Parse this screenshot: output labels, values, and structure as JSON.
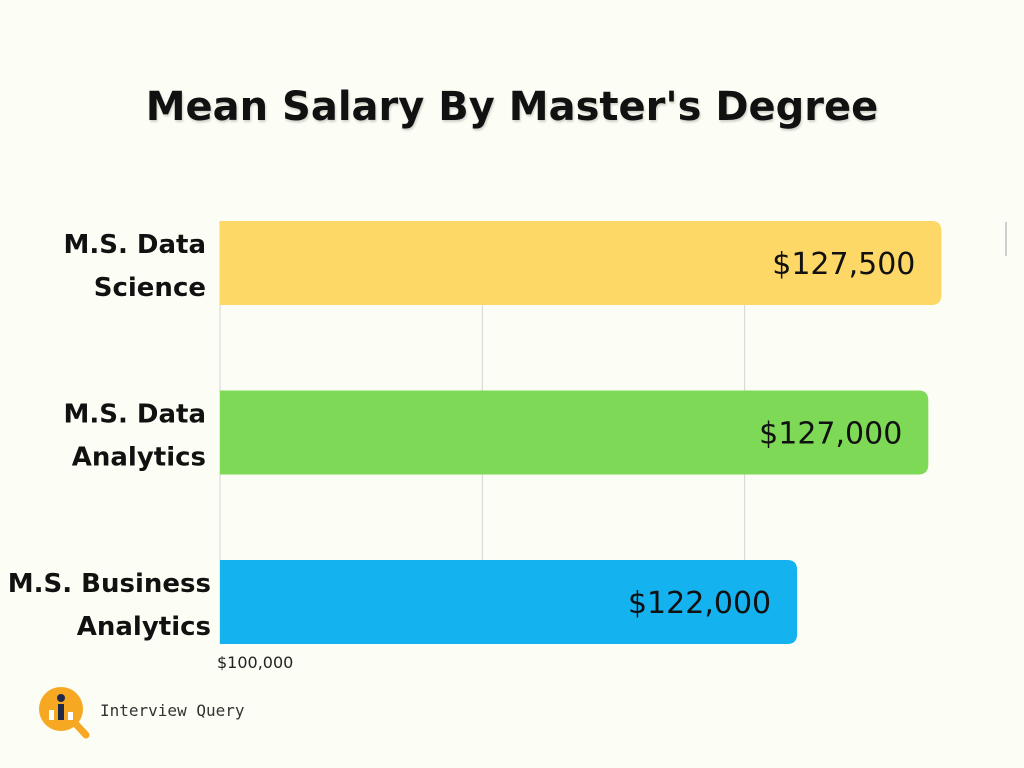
{
  "chart_data": {
    "type": "bar",
    "orientation": "horizontal",
    "title": "Mean Salary By Master's Degree",
    "categories": [
      [
        "M.S. Data",
        "Science"
      ],
      [
        "M.S. Data",
        "Analytics"
      ],
      [
        "M.S. Business",
        "Analytics"
      ]
    ],
    "values": [
      127500,
      127000,
      122000
    ],
    "value_labels": [
      "$127,500",
      "$127,000",
      "$122,000"
    ],
    "colors": [
      "#fdd866",
      "#7ed957",
      "#14b2ef"
    ],
    "x_tick_labels": [
      "$100,000"
    ],
    "xlim": [
      100000,
      130000
    ],
    "grid": true,
    "legend": "none"
  },
  "branding": {
    "logo_text": "Interview Query",
    "logo_color": "#f7a823"
  }
}
